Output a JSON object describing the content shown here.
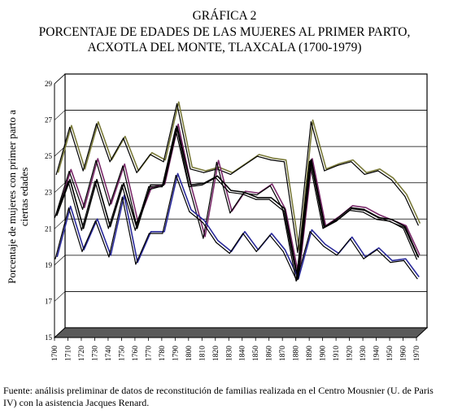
{
  "header": {
    "line1": "GRÁFICA 2",
    "line2": "PORCENTAJE DE EDADES DE LAS MUJERES AL PRIMER PARTO,",
    "line3": "ACXOTLA DEL MONTE, TLAXCALA (1700-1979)"
  },
  "footer": {
    "source": "Fuente: análisis preliminar de datos de reconstitución de familias realizada en el Centro Mousnier (U. de Paris IV) con la asistencia Jacques Renard."
  },
  "chart_data": {
    "type": "line",
    "title": "",
    "xlabel": "",
    "ylabel": "Porcentaje de mujeres con primer parto a ciertas edades",
    "ylim": [
      15,
      29
    ],
    "yticks": [
      15,
      17,
      19,
      21,
      23,
      25,
      27,
      29
    ],
    "style": "3d-ribbon",
    "grid": true,
    "legend": "none",
    "categories": [
      "1700",
      "1710",
      "1720",
      "1730",
      "1740",
      "1750",
      "1760",
      "1770",
      "1780",
      "1790",
      "1800",
      "1810",
      "1820",
      "1830",
      "1840",
      "1850",
      "1860",
      "1870",
      "1880",
      "1890",
      "1900",
      "1910",
      "1920",
      "1930",
      "1940",
      "1950",
      "1960",
      "1970"
    ],
    "series": [
      {
        "color": "#7a7a3a",
        "values": [
          23.9,
          26.5,
          24.1,
          26.7,
          24.6,
          25.9,
          24.0,
          25.0,
          24.6,
          27.8,
          24.2,
          24.0,
          24.2,
          23.9,
          24.4,
          24.9,
          24.7,
          24.6,
          19.6,
          26.8,
          24.1,
          24.4,
          24.6,
          23.9,
          24.1,
          23.6,
          22.7,
          21.1
        ]
      },
      {
        "color": "#7a2a6a",
        "values": [
          21.7,
          24.1,
          22.0,
          24.7,
          22.2,
          24.4,
          21.2,
          23.1,
          23.3,
          26.6,
          23.1,
          20.4,
          24.6,
          21.8,
          22.9,
          22.8,
          23.3,
          21.9,
          18.2,
          24.7,
          21.0,
          21.5,
          22.1,
          22.0,
          21.6,
          21.3,
          21.0,
          19.4
        ]
      },
      {
        "color": "#2a2a9a",
        "values": [
          19.3,
          22.1,
          19.7,
          21.4,
          19.4,
          22.7,
          19.0,
          20.7,
          20.7,
          23.9,
          21.9,
          21.3,
          20.2,
          19.6,
          20.7,
          19.7,
          20.6,
          19.7,
          18.1,
          20.8,
          20.0,
          19.5,
          20.4,
          19.3,
          19.8,
          19.1,
          19.2,
          18.2
        ]
      },
      {
        "color": "#000000",
        "values": [
          21.6,
          23.6,
          20.9,
          23.6,
          21.0,
          23.4,
          20.9,
          23.3,
          23.3,
          26.5,
          23.3,
          23.4,
          23.8,
          23.0,
          22.9,
          22.6,
          22.6,
          22.0,
          18.1,
          24.7,
          21.0,
          21.4,
          22.0,
          21.9,
          21.5,
          21.4,
          21.0,
          19.3
        ]
      }
    ]
  }
}
